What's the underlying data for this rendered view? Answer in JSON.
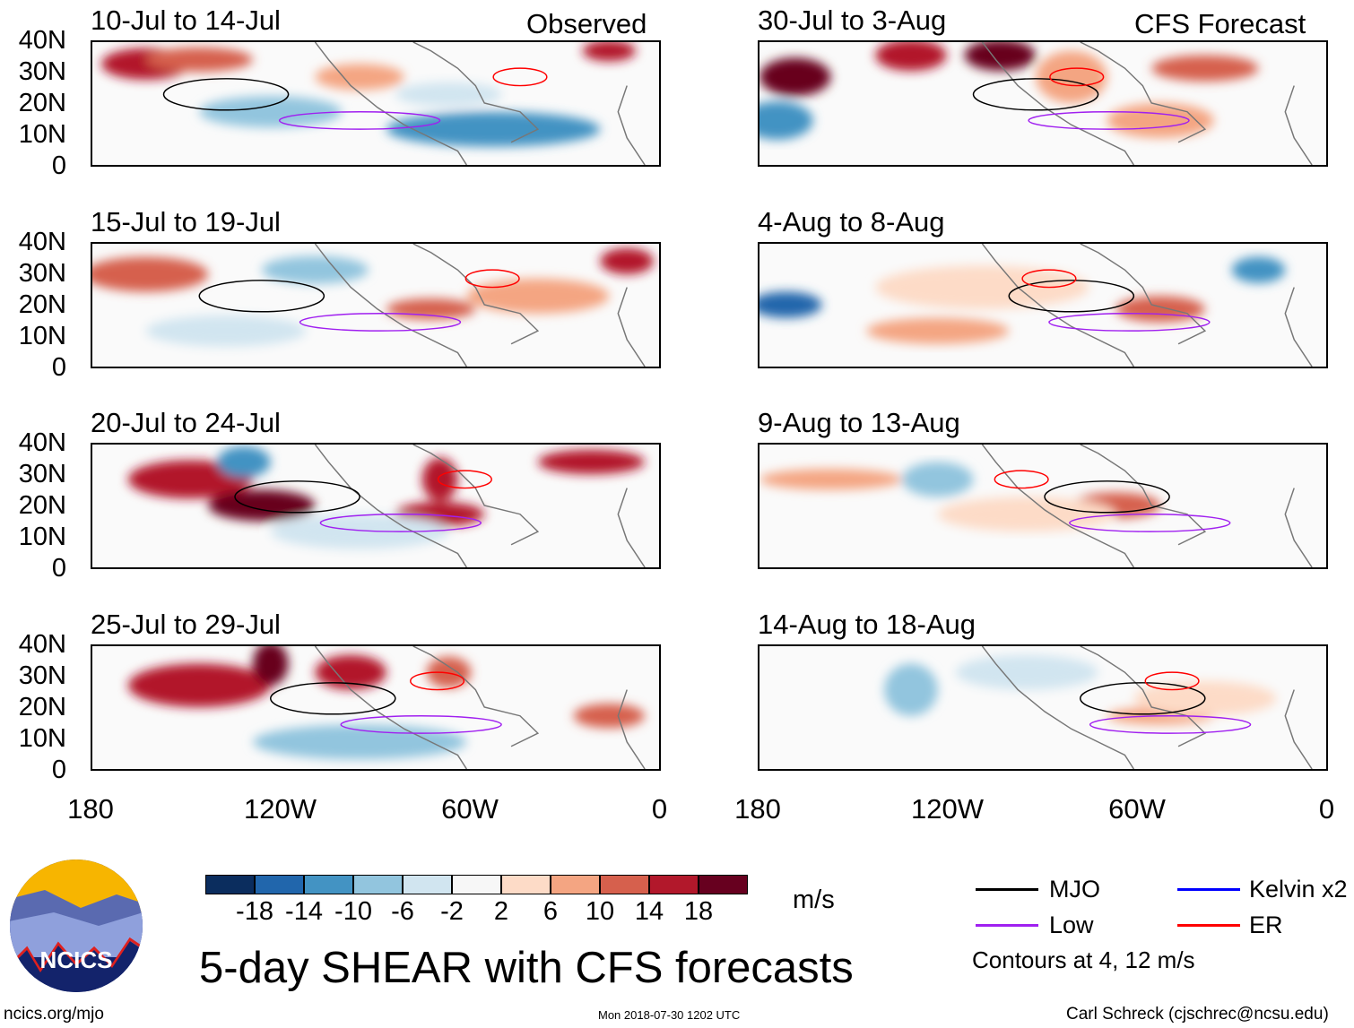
{
  "observed_label": "Observed",
  "forecast_label": "CFS Forecast",
  "panels": [
    {
      "title": "10-Jul to 14-Jul",
      "kind": "observed"
    },
    {
      "title": "15-Jul to 19-Jul",
      "kind": "observed"
    },
    {
      "title": "20-Jul to 24-Jul",
      "kind": "observed"
    },
    {
      "title": "25-Jul to 29-Jul",
      "kind": "observed"
    },
    {
      "title": "30-Jul to 3-Aug",
      "kind": "forecast"
    },
    {
      "title": "4-Aug to 8-Aug",
      "kind": "forecast"
    },
    {
      "title": "9-Aug to 13-Aug",
      "kind": "forecast"
    },
    {
      "title": "14-Aug to 18-Aug",
      "kind": "forecast"
    }
  ],
  "y_ticks": [
    "40N",
    "30N",
    "20N",
    "10N",
    "0"
  ],
  "x_ticks": [
    "180",
    "120W",
    "60W",
    "0"
  ],
  "colorbar": {
    "colors": [
      "#0b2d5e",
      "#2166ac",
      "#4393c3",
      "#92c5de",
      "#d1e5f0",
      "#f7f7f7",
      "#fddbc7",
      "#f4a582",
      "#d6604d",
      "#b2182b",
      "#67001f"
    ],
    "labels": [
      "-18",
      "-14",
      "-10",
      "-6",
      "-2",
      "2",
      "6",
      "10",
      "14",
      "18"
    ],
    "units": "m/s"
  },
  "legend": {
    "items": [
      {
        "label": "MJO",
        "color": "#000000"
      },
      {
        "label": "Kelvin x2",
        "color": "#0000ff"
      },
      {
        "label": "Low",
        "color": "#a020f0"
      },
      {
        "label": "ER",
        "color": "#ff0000"
      }
    ],
    "note": "Contours at 4, 12 m/s"
  },
  "main_title": "5-day SHEAR with CFS forecasts",
  "logo_text": "NCICS",
  "footer": {
    "left": "ncics.org/mjo",
    "center": "Mon 2018-07-30 1202 UTC",
    "right": "Carl Schreck (cjschrec@ncsu.edu)"
  }
}
